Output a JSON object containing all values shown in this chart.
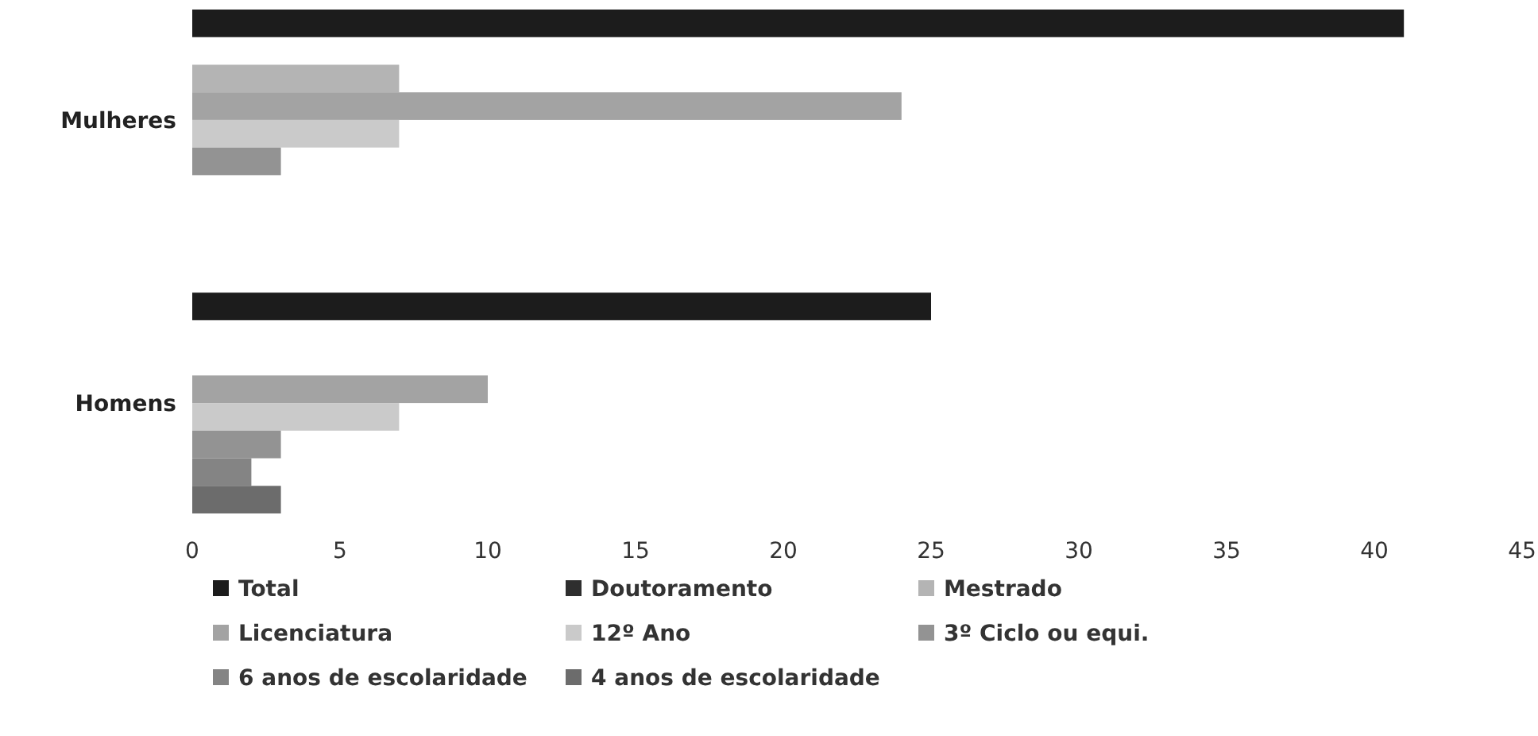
{
  "chart_data": {
    "type": "bar",
    "orientation": "horizontal",
    "categories": [
      "Mulheres",
      "Homens"
    ],
    "series": [
      {
        "name": "Total",
        "color": "#1c1c1c",
        "values": [
          41,
          25
        ]
      },
      {
        "name": "Doutoramento",
        "color": "#2e2e2e",
        "values": [
          0,
          0
        ]
      },
      {
        "name": "Mestrado",
        "color": "#b4b4b4",
        "values": [
          7,
          0
        ]
      },
      {
        "name": "Licenciatura",
        "color": "#a3a3a3",
        "values": [
          24,
          10
        ]
      },
      {
        "name": "12º Ano",
        "color": "#cacaca",
        "values": [
          7,
          7
        ]
      },
      {
        "name": "3º Ciclo ou equi.",
        "color": "#939393",
        "values": [
          3,
          3
        ]
      },
      {
        "name": "6 anos de escolaridade",
        "color": "#848484",
        "values": [
          0,
          2
        ]
      },
      {
        "name": "4 anos de escolaridade",
        "color": "#6c6c6c",
        "values": [
          0,
          3
        ]
      }
    ],
    "xlim": [
      0,
      45
    ],
    "xticks": [
      0,
      5,
      10,
      15,
      20,
      25,
      30,
      35,
      40,
      45
    ],
    "grid": false,
    "legend": "bottom"
  }
}
